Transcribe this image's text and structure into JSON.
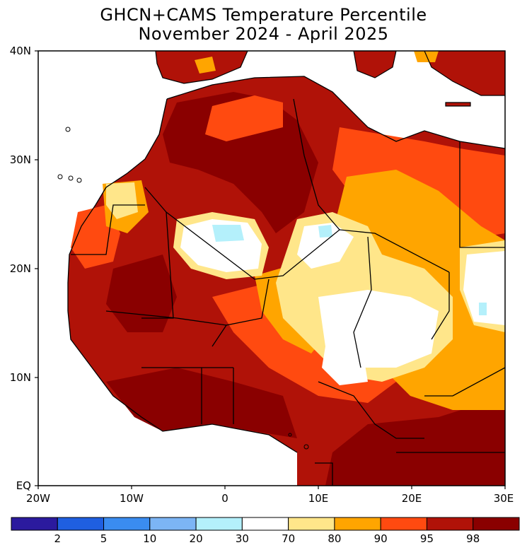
{
  "title_line1": "GHCN+CAMS Temperature Percentile",
  "title_line2": "November 2024 - April 2025",
  "lat_labels": [
    "40N",
    "30N",
    "20N",
    "10N",
    "EQ"
  ],
  "lon_labels": [
    "20W",
    "10W",
    "0",
    "10E",
    "20E",
    "30E"
  ],
  "legend": {
    "colors": [
      "#2b1a9e",
      "#1f5fe0",
      "#3a8cf0",
      "#7cb5f5",
      "#b4f0fb",
      "#ffffff",
      "#ffe68a",
      "#ffa500",
      "#ff4a10",
      "#b01208",
      "#8a0000"
    ],
    "tick_labels": [
      "2",
      "5",
      "10",
      "20",
      "30",
      "70",
      "80",
      "90",
      "95",
      "98"
    ]
  }
}
